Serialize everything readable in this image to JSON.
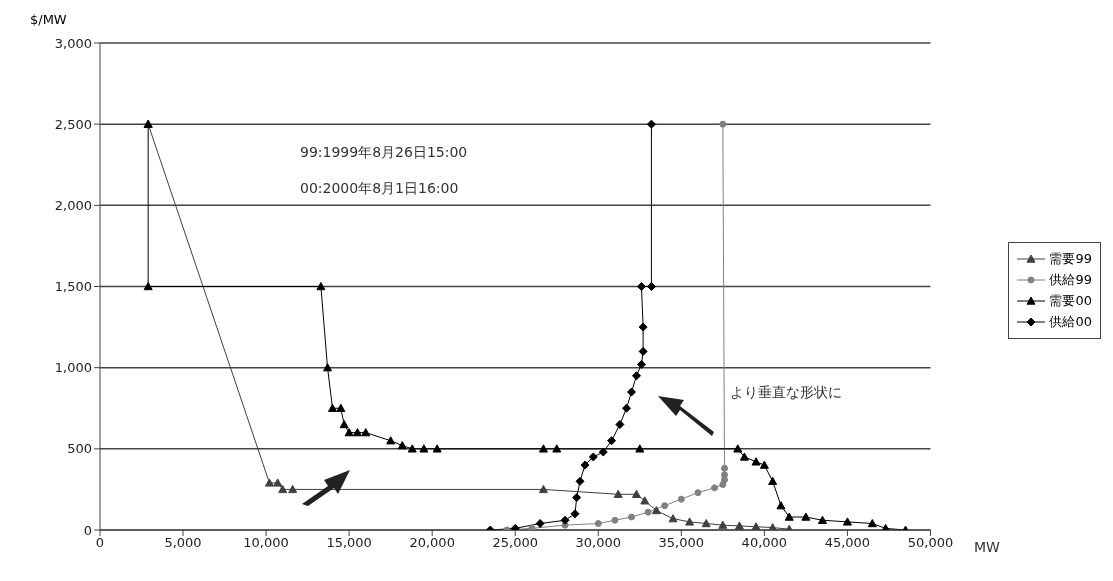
{
  "chart_data": {
    "type": "line",
    "ylabel": "$/MW",
    "annotations": [
      "99:1999年8月26日15:00",
      "00:2000年8月1日16:00",
      "より垂直な形状に",
      "MW"
    ],
    "xlim": [
      0,
      50000
    ],
    "xticks": [
      {
        "value": 0,
        "label": "0"
      },
      {
        "value": 5000,
        "label": "5,000"
      },
      {
        "value": 10000,
        "label": "10,000"
      },
      {
        "value": 15000,
        "label": "15,000"
      },
      {
        "value": 20000,
        "label": "20,000"
      },
      {
        "value": 25000,
        "label": "25,000"
      },
      {
        "value": 30000,
        "label": "30,000"
      },
      {
        "value": 35000,
        "label": "35,000"
      },
      {
        "value": 40000,
        "label": "40,000"
      },
      {
        "value": 45000,
        "label": "45,000"
      },
      {
        "value": 50000,
        "label": "50,000"
      }
    ],
    "ylim": [
      0,
      3000
    ],
    "yticks": [
      {
        "value": 0,
        "label": "0"
      },
      {
        "value": 500,
        "label": "500"
      },
      {
        "value": 1000,
        "label": "1,000"
      },
      {
        "value": 1500,
        "label": "1,500"
      },
      {
        "value": 2000,
        "label": "2,000"
      },
      {
        "value": 2500,
        "label": "2,500"
      },
      {
        "value": 3000,
        "label": "3,000"
      }
    ],
    "grid": "y",
    "legend": "right",
    "series": [
      {
        "name": "需要99",
        "color": "#404040",
        "marker": "triangle",
        "x": [
          2900,
          10200,
          10700,
          11000,
          11600,
          26700,
          31200,
          32300,
          32800,
          33500,
          34500,
          35500,
          36500,
          37500,
          38500,
          39500,
          40500,
          41500
        ],
        "values": [
          2500,
          290,
          290,
          250,
          250,
          250,
          220,
          220,
          180,
          120,
          70,
          50,
          40,
          30,
          25,
          20,
          15,
          5
        ]
      },
      {
        "name": "供給99",
        "color": "#808080",
        "marker": "circle",
        "x": [
          24500,
          26000,
          28000,
          30000,
          31000,
          32000,
          33000,
          34000,
          35000,
          36000,
          37000,
          37500,
          37600,
          37600,
          37600,
          37500
        ],
        "values": [
          0,
          10,
          30,
          40,
          60,
          80,
          110,
          150,
          190,
          230,
          260,
          280,
          310,
          340,
          380,
          2500
        ]
      },
      {
        "name": "需要00",
        "color": "#000000",
        "marker": "triangle",
        "x": [
          2900,
          2900,
          13300,
          13700,
          14000,
          14500,
          14700,
          15000,
          15500,
          16000,
          17500,
          18200,
          18800,
          19500,
          20300,
          26700,
          27500,
          32500,
          38400,
          38800,
          39500,
          40000,
          40500,
          41000,
          41500,
          42500,
          43500,
          45000,
          46500,
          47300,
          48500
        ],
        "values": [
          2500,
          1500,
          1500,
          1000,
          750,
          750,
          650,
          600,
          600,
          600,
          550,
          520,
          500,
          500,
          500,
          500,
          500,
          500,
          500,
          450,
          420,
          400,
          300,
          150,
          80,
          80,
          60,
          50,
          40,
          10,
          0
        ]
      },
      {
        "name": "供給00",
        "color": "#000000",
        "marker": "diamond",
        "x": [
          23500,
          25000,
          26500,
          28000,
          28600,
          28700,
          28900,
          29200,
          29700,
          30300,
          30800,
          31300,
          31700,
          32000,
          32300,
          32600,
          32700,
          32700,
          32600,
          33200,
          33200
        ],
        "values": [
          0,
          10,
          40,
          60,
          100,
          200,
          300,
          400,
          450,
          480,
          550,
          650,
          750,
          850,
          950,
          1020,
          1100,
          1250,
          1500,
          1500,
          2500
        ]
      }
    ]
  }
}
